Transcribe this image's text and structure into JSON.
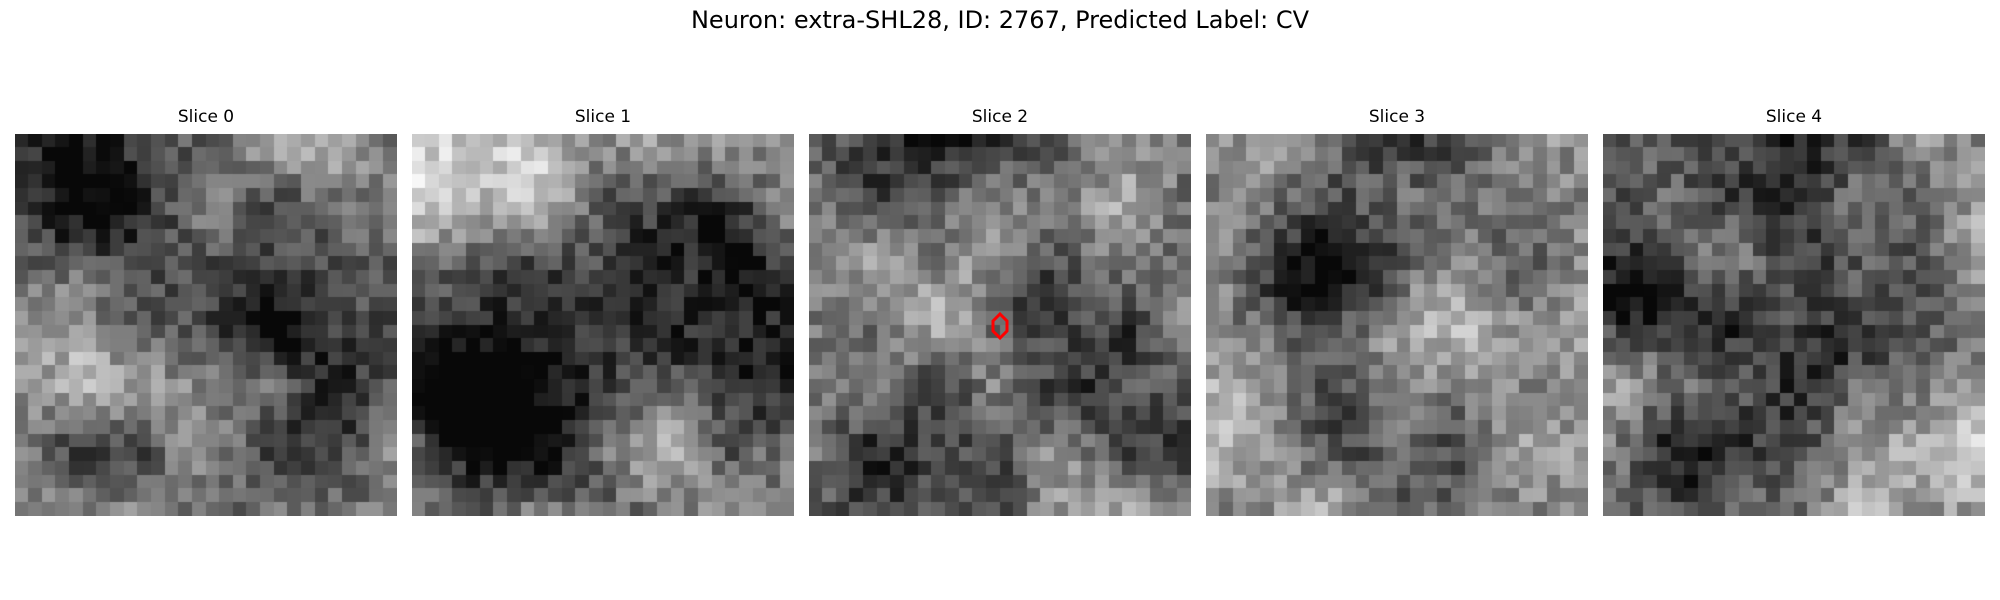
{
  "figure": {
    "title": "Neuron: extra-SHL28, ID: 2767, Predicted Label: CV"
  },
  "panels": [
    {
      "title": "Slice 0",
      "seed": 11,
      "base": 0.62,
      "features": [
        [
          0.64,
          0.45,
          0.2,
          -0.55
        ],
        [
          0.85,
          0.85,
          0.2,
          -0.25
        ],
        [
          0.25,
          0.25,
          0.16,
          -0.2
        ],
        [
          0.12,
          0.1,
          0.2,
          -0.4
        ],
        [
          0.2,
          0.9,
          0.2,
          -0.25
        ],
        [
          0.45,
          0.45,
          0.18,
          0.2
        ]
      ]
    },
    {
      "title": "Slice 1",
      "seed": 23,
      "base": 0.55,
      "features": [
        [
          0.25,
          0.65,
          0.22,
          -0.75
        ],
        [
          0.72,
          0.38,
          0.16,
          -0.55
        ],
        [
          0.72,
          0.38,
          0.08,
          0.35
        ],
        [
          0.1,
          0.1,
          0.2,
          0.35
        ],
        [
          0.6,
          0.8,
          0.22,
          0.1
        ],
        [
          0.95,
          0.6,
          0.15,
          -0.3
        ]
      ]
    },
    {
      "title": "Slice 2",
      "seed": 37,
      "base": 0.55,
      "features": [
        [
          0.6,
          0.4,
          0.1,
          -0.45
        ],
        [
          0.3,
          0.05,
          0.2,
          -0.45
        ],
        [
          0.35,
          0.8,
          0.2,
          -0.2
        ],
        [
          0.85,
          0.65,
          0.18,
          -0.35
        ],
        [
          0.5,
          0.28,
          0.25,
          0.2
        ],
        [
          0.15,
          0.85,
          0.15,
          -0.2
        ]
      ]
    },
    {
      "title": "Slice 3",
      "seed": 51,
      "base": 0.6,
      "features": [
        [
          0.3,
          0.4,
          0.12,
          -0.55
        ],
        [
          0.45,
          0.75,
          0.18,
          -0.35
        ],
        [
          0.85,
          0.35,
          0.1,
          -0.4
        ],
        [
          0.5,
          0.05,
          0.2,
          -0.4
        ],
        [
          0.2,
          0.9,
          0.15,
          0.15
        ],
        [
          0.65,
          0.5,
          0.2,
          0.1
        ]
      ]
    },
    {
      "title": "Slice 4",
      "seed": 67,
      "base": 0.6,
      "features": [
        [
          0.1,
          0.4,
          0.1,
          -0.5
        ],
        [
          0.5,
          0.6,
          0.18,
          -0.35
        ],
        [
          0.65,
          0.55,
          0.1,
          -0.3
        ],
        [
          0.4,
          0.05,
          0.25,
          -0.35
        ],
        [
          0.85,
          0.85,
          0.15,
          0.2
        ],
        [
          0.25,
          0.85,
          0.12,
          -0.3
        ]
      ]
    }
  ],
  "grid": 28,
  "marker": {
    "panel": 2,
    "color": "#ff0000"
  }
}
